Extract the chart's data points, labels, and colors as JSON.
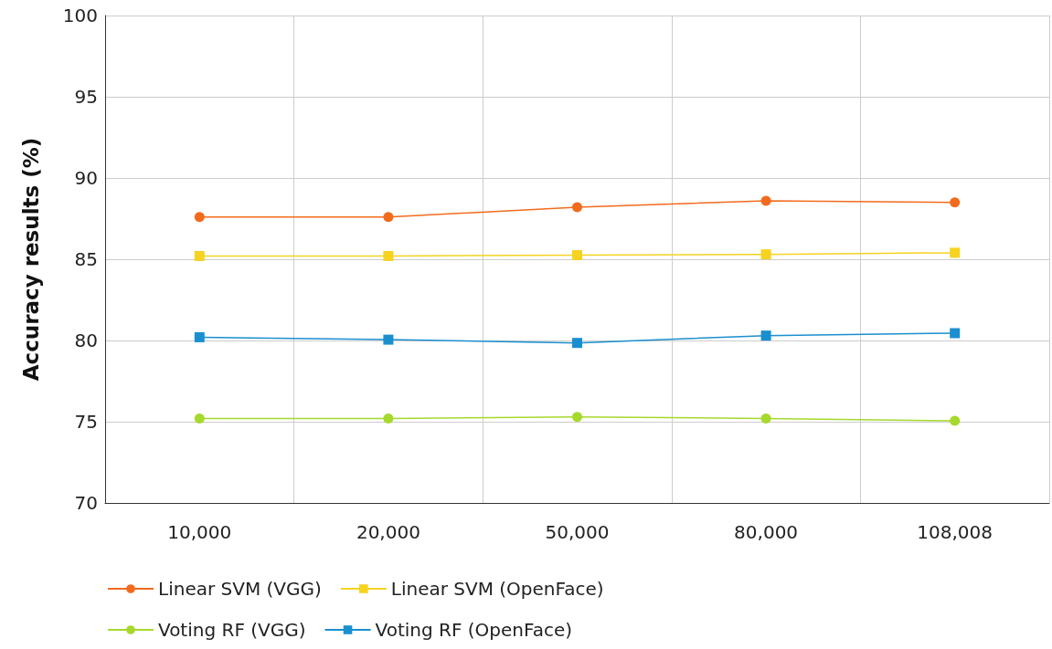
{
  "chart_data": {
    "type": "line",
    "ylabel": "Accuracy results (%)",
    "categories": [
      "10,000",
      "20,000",
      "50,000",
      "80,000",
      "108,008"
    ],
    "series": [
      {
        "name": "Linear SVM (VGG)",
        "color": "#f26b1d",
        "marker": "circle",
        "values": [
          87.6,
          87.6,
          88.2,
          88.6,
          88.5
        ]
      },
      {
        "name": "Linear SVM (OpenFace)",
        "color": "#f5d320",
        "marker": "square",
        "values": [
          85.2,
          85.2,
          85.25,
          85.3,
          85.4
        ]
      },
      {
        "name": "Voting RF (VGG)",
        "color": "#a5d92c",
        "marker": "circle",
        "values": [
          75.2,
          75.2,
          75.3,
          75.2,
          75.05
        ]
      },
      {
        "name": "Voting RF (OpenFace)",
        "color": "#1a8fd0",
        "marker": "square",
        "values": [
          80.2,
          80.05,
          79.85,
          80.3,
          80.45
        ]
      }
    ],
    "ylim": [
      70,
      100
    ],
    "yticks": [
      70,
      75,
      80,
      85,
      90,
      95,
      100
    ],
    "grid": true,
    "legend": "bottom",
    "line_style": "solid"
  }
}
